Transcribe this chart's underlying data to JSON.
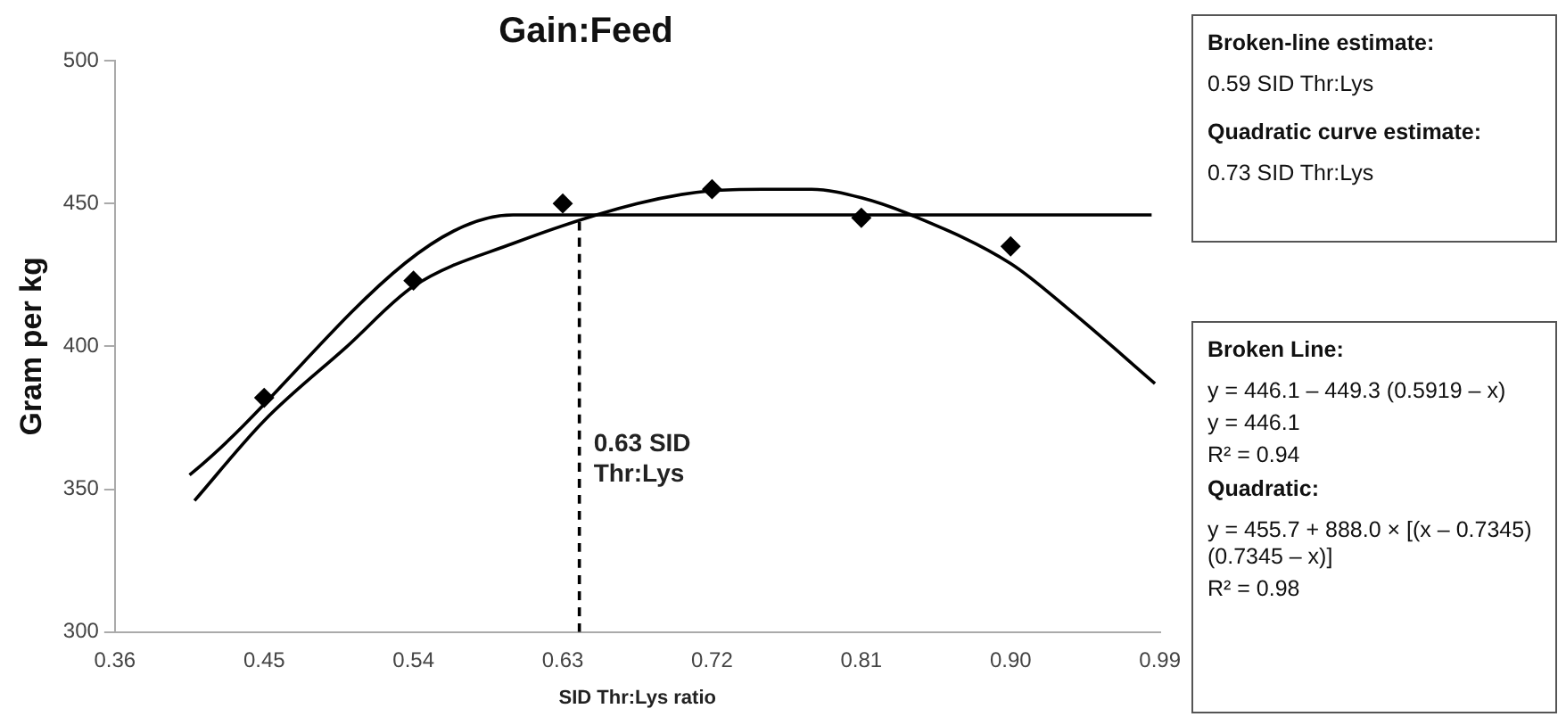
{
  "chart_data": {
    "type": "scatter",
    "title": "Gain:Feed",
    "xlabel": "SID Thr:Lys ratio",
    "ylabel": "Gram per kg",
    "xlim": [
      0.36,
      0.99
    ],
    "xticks": [
      0.36,
      0.45,
      0.54,
      0.63,
      0.72,
      0.81,
      {
        "value": 0.9,
        "label": "0.90"
      },
      0.99
    ],
    "ylim": [
      300,
      500
    ],
    "yticks": [
      300,
      350,
      400,
      450,
      500
    ],
    "grid": false,
    "legend": false,
    "series": [
      {
        "marker": "diamond",
        "color": "#000000",
        "x": [
          0.45,
          0.54,
          0.63,
          0.72,
          0.81,
          0.9
        ],
        "values": [
          382,
          423,
          450,
          455,
          445,
          435
        ]
      },
      {
        "type": "line",
        "marker": "none",
        "color": "#000000",
        "x": [
          0.405,
          0.6,
          0.985
        ],
        "values": [
          355,
          446,
          446
        ]
      },
      {
        "type": "line",
        "marker": "none",
        "color": "#000000",
        "x": [
          0.408,
          0.45,
          0.5,
          0.54,
          0.6,
          0.675,
          0.72,
          0.75,
          0.78,
          0.81,
          0.84,
          0.9,
          0.937,
          0.987
        ],
        "values": [
          346,
          374,
          400,
          421,
          436,
          450,
          454.5,
          455,
          455,
          452,
          446,
          429,
          412,
          387
        ]
      },
      {
        "type": "line",
        "marker": "none",
        "line_style": "dashed",
        "color": "#000000",
        "x": [
          0.64,
          0.64
        ],
        "values": [
          300,
          445
        ]
      }
    ],
    "annotations": [
      {
        "text": "0.63 SID Thr:Lys",
        "x": 0.64,
        "y": 370
      },
      "Broken-line estimate:",
      "0.59 SID Thr:Lys",
      "Quadratic curve estimate:",
      "0.73 SID Thr:Lys",
      "Broken Line:",
      "y = 446.1 – 449.3 (0.5919 – x)",
      "y = 446.1",
      "R² = 0.94",
      "Quadratic:",
      "y = 455.7 + 888.0 × [(x – 0.7345)(0.7345 – x)]",
      "R² = 0.98"
    ]
  }
}
